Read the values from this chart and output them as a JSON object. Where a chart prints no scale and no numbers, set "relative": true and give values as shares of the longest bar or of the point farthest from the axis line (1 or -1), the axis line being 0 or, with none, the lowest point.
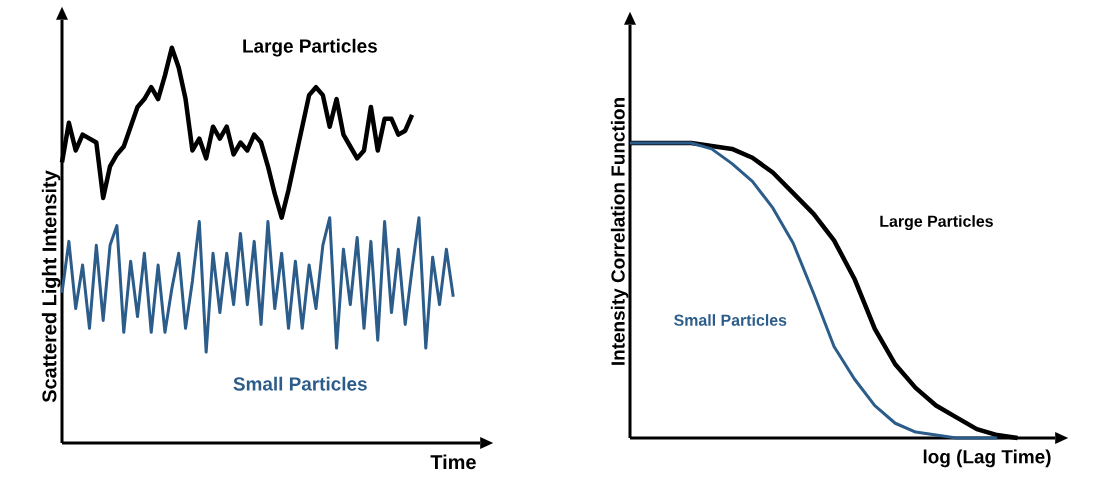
{
  "chart_data": [
    {
      "type": "line",
      "relative": true,
      "xlabel": "Time",
      "ylabel": "Scattered Light Intensity",
      "categories": [
        null,
        null,
        null,
        null,
        null,
        null,
        null,
        null,
        null,
        null,
        null,
        null,
        null,
        null,
        null,
        null,
        null,
        null,
        null,
        null,
        null,
        null,
        null,
        null,
        null,
        null,
        null,
        null,
        null,
        null,
        null,
        null,
        null,
        null,
        null,
        null,
        null,
        null,
        null,
        null,
        null,
        null,
        null,
        null,
        null,
        null,
        null,
        null,
        null,
        null,
        null,
        null,
        null,
        null,
        null,
        null,
        null,
        null
      ],
      "series": [
        {
          "name": "Large Particles",
          "color": "#000000",
          "values": [
            0.71,
            0.81,
            0.74,
            0.78,
            0.77,
            0.76,
            0.62,
            0.7,
            0.73,
            0.75,
            0.8,
            0.85,
            0.87,
            0.9,
            0.87,
            0.93,
            1.0,
            0.95,
            0.87,
            0.74,
            0.77,
            0.72,
            0.8,
            0.77,
            0.8,
            0.73,
            0.76,
            0.74,
            0.78,
            0.76,
            0.7,
            0.63,
            0.57,
            0.64,
            0.72,
            0.8,
            0.88,
            0.9,
            0.88,
            0.8,
            0.87,
            0.78,
            0.75,
            0.72,
            0.74,
            0.85,
            0.74,
            0.82,
            0.82,
            0.78,
            0.79,
            0.83,
            null,
            null,
            null,
            null,
            null,
            null
          ]
        },
        {
          "name": "Small Particles",
          "color": "#2b5c8a",
          "values": [
            0.38,
            0.51,
            0.34,
            0.45,
            0.29,
            0.5,
            0.31,
            0.5,
            0.55,
            0.28,
            0.46,
            0.32,
            0.48,
            0.28,
            0.45,
            0.28,
            0.39,
            0.48,
            0.29,
            0.41,
            0.56,
            0.23,
            0.48,
            0.33,
            0.48,
            0.35,
            0.53,
            0.35,
            0.51,
            0.3,
            0.56,
            0.34,
            0.48,
            0.29,
            0.46,
            0.29,
            0.45,
            0.34,
            0.5,
            0.57,
            0.24,
            0.49,
            0.35,
            0.52,
            0.29,
            0.51,
            0.26,
            0.56,
            0.33,
            0.49,
            0.3,
            0.44,
            0.57,
            0.24,
            0.47,
            0.35,
            0.49,
            0.37
          ]
        }
      ]
    },
    {
      "type": "line",
      "relative": true,
      "xlabel": "log (Lag Time)",
      "ylabel": "Intensity Correlation Function",
      "categories": [
        null,
        null,
        null,
        null,
        null,
        null,
        null,
        null,
        null,
        null,
        null,
        null,
        null,
        null,
        null,
        null,
        null,
        null,
        null,
        null
      ],
      "series": [
        {
          "name": "Large Particles",
          "color": "#000000",
          "values": [
            1.0,
            1.0,
            1.0,
            1.0,
            0.99,
            0.98,
            0.95,
            0.9,
            0.83,
            0.76,
            0.67,
            0.54,
            0.37,
            0.25,
            0.17,
            0.11,
            0.07,
            0.03,
            0.01,
            0.0
          ]
        },
        {
          "name": "Small Particles",
          "color": "#2b5c8a",
          "values": [
            1.0,
            1.0,
            1.0,
            1.0,
            0.98,
            0.93,
            0.87,
            0.78,
            0.66,
            0.49,
            0.31,
            0.2,
            0.11,
            0.05,
            0.02,
            0.01,
            0.0,
            0.0,
            0.0,
            null
          ]
        }
      ]
    }
  ]
}
